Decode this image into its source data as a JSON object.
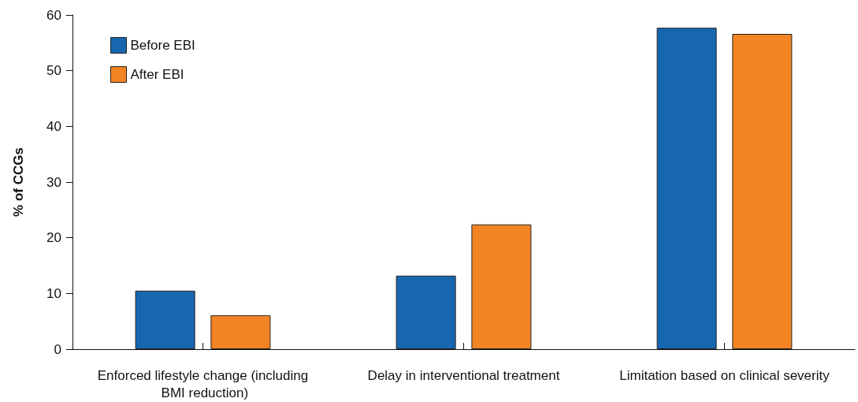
{
  "chart_data": {
    "type": "bar",
    "ylabel": "% of CCGs",
    "categories": [
      "Enforced lifestyle change (including BMI reduction)",
      "Delay in interventional treatment",
      "Limitation based on clinical severity"
    ],
    "series": [
      {
        "name": "Before EBI",
        "color": "#1767b0",
        "values": [
          10.5,
          13.2,
          57.7
        ]
      },
      {
        "name": "After EBI",
        "color": "#f38423",
        "values": [
          6.1,
          22.4,
          56.6
        ]
      }
    ],
    "ylim": [
      0,
      60
    ],
    "yticks": [
      0,
      10,
      20,
      30,
      40,
      50,
      60
    ],
    "grid": false,
    "legend": "top left"
  }
}
